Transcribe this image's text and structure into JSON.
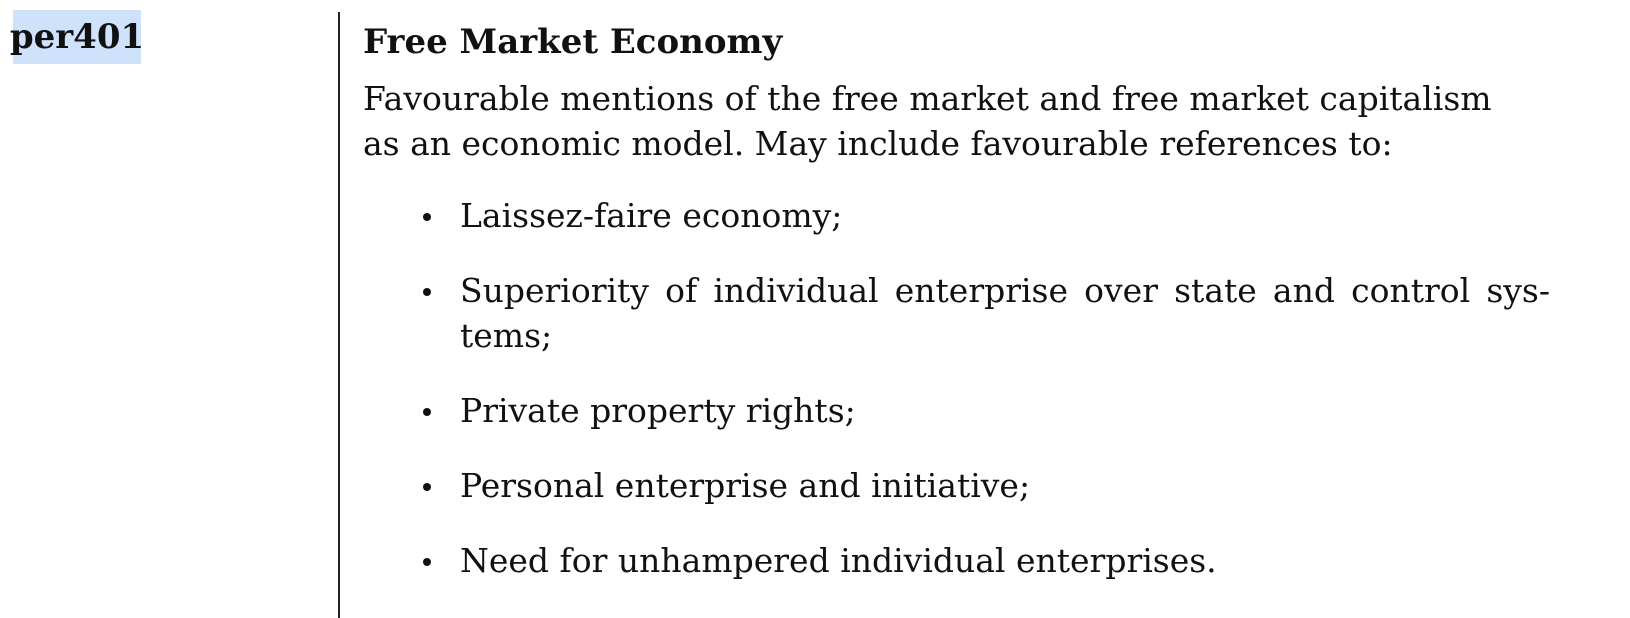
{
  "code": "per401",
  "category": {
    "title": "Free Market Economy",
    "description": "Favourable mentions of the free market and free market capitalism as an economic model. May include favourable references to:",
    "items": [
      "Laissez-faire economy;",
      "Superiority of individual enterprise over state and control sys-tems;",
      "Private property rights;",
      "Personal enterprise and initiative;",
      "Need for unhampered individual enterprises."
    ]
  }
}
